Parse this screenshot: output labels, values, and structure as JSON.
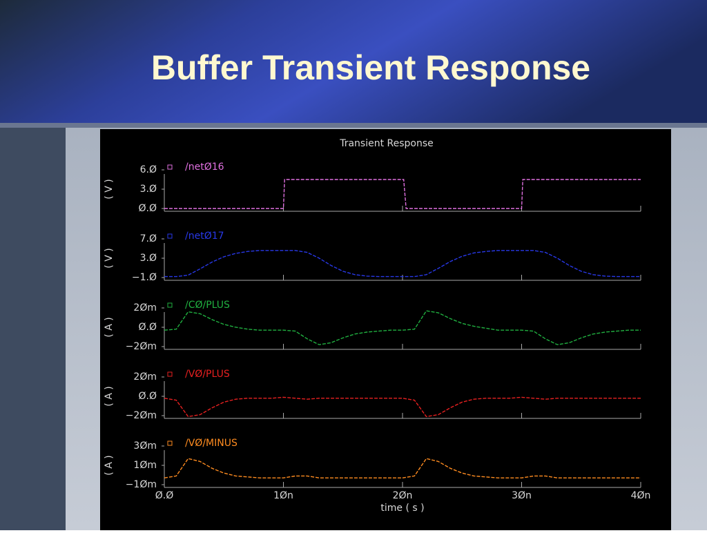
{
  "title": "Buffer Transient Response",
  "chart_data": {
    "type": "line",
    "title": "Transient Response",
    "xlabel": "time ( s )",
    "xlim": [
      0,
      4e-08
    ],
    "xticks": [
      {
        "value": 0,
        "label": "Ø.Ø"
      },
      {
        "value": 1e-08,
        "label": "1Øn"
      },
      {
        "value": 2e-08,
        "label": "2Øn"
      },
      {
        "value": 3e-08,
        "label": "3Øn"
      },
      {
        "value": 4e-08,
        "label": "4Øn"
      }
    ],
    "panels": [
      {
        "ylabel": "( V )",
        "ylim": [
          0,
          6
        ],
        "yticks": [
          {
            "value": 0,
            "label": "Ø.Ø"
          },
          {
            "value": 3,
            "label": "3.Ø"
          },
          {
            "value": 6,
            "label": "6.Ø"
          }
        ],
        "x": [
          0,
          1e-08,
          1.01e-08,
          2.01e-08,
          2.03e-08,
          3e-08,
          3.01e-08,
          4e-08
        ],
        "series": [
          {
            "name": "/netØ16",
            "color": "#e070e0",
            "values": [
              0,
              0,
              4.5,
              4.5,
              0,
              0,
              4.5,
              4.5
            ]
          }
        ]
      },
      {
        "ylabel": "( V )",
        "ylim": [
          -1,
          7
        ],
        "yticks": [
          {
            "value": -1,
            "label": "−1.Ø"
          },
          {
            "value": 3,
            "label": "3.Ø"
          },
          {
            "value": 7,
            "label": "7.Ø"
          }
        ],
        "x": [
          0,
          1e-09,
          2e-09,
          3e-09,
          4e-09,
          5e-09,
          6e-09,
          7e-09,
          8e-09,
          9e-09,
          1e-08,
          1.1e-08,
          1.2e-08,
          1.3e-08,
          1.4e-08,
          1.5e-08,
          1.6e-08,
          1.7e-08,
          1.8e-08,
          1.9e-08,
          2e-08,
          2.1e-08,
          2.2e-08,
          2.3e-08,
          2.4e-08,
          2.5e-08,
          2.6e-08,
          2.7e-08,
          2.8e-08,
          2.9e-08,
          3e-08,
          3.1e-08,
          3.2e-08,
          3.3e-08,
          3.4e-08,
          3.5e-08,
          3.6e-08,
          3.7e-08,
          3.8e-08,
          3.9e-08,
          4e-08
        ],
        "series": [
          {
            "name": "/netØ17",
            "color": "#2838e8",
            "values": [
              -0.8,
              -0.8,
              -0.5,
              0.8,
              2.2,
              3.3,
              4.0,
              4.4,
              4.6,
              4.6,
              4.6,
              4.6,
              4.2,
              3.0,
              1.5,
              0.3,
              -0.4,
              -0.7,
              -0.8,
              -0.8,
              -0.8,
              -0.8,
              -0.4,
              0.9,
              2.3,
              3.4,
              4.1,
              4.4,
              4.6,
              4.6,
              4.6,
              4.6,
              4.2,
              3.0,
              1.5,
              0.3,
              -0.4,
              -0.7,
              -0.8,
              -0.8,
              -0.8
            ]
          }
        ]
      },
      {
        "ylabel": "( A )",
        "ylim": [
          -0.02,
          0.02
        ],
        "yticks": [
          {
            "value": -0.02,
            "label": "−2Øm"
          },
          {
            "value": 0,
            "label": "Ø.Ø"
          },
          {
            "value": 0.02,
            "label": "2Øm"
          }
        ],
        "x": [
          0,
          1e-09,
          2e-09,
          3e-09,
          4e-09,
          5e-09,
          6e-09,
          7e-09,
          8e-09,
          9e-09,
          1e-08,
          1.1e-08,
          1.2e-08,
          1.3e-08,
          1.4e-08,
          1.5e-08,
          1.6e-08,
          1.7e-08,
          1.8e-08,
          1.9e-08,
          2e-08,
          2.1e-08,
          2.2e-08,
          2.3e-08,
          2.4e-08,
          2.5e-08,
          2.6e-08,
          2.7e-08,
          2.8e-08,
          2.9e-08,
          3e-08,
          3.1e-08,
          3.2e-08,
          3.3e-08,
          3.4e-08,
          3.5e-08,
          3.6e-08,
          3.7e-08,
          3.8e-08,
          3.9e-08,
          4e-08
        ],
        "series": [
          {
            "name": "/CØ/PLUS",
            "color": "#20b040",
            "values": [
              -0.003,
              -0.002,
              0.016,
              0.014,
              0.008,
              0.003,
              0.0,
              -0.002,
              -0.003,
              -0.003,
              -0.003,
              -0.004,
              -0.012,
              -0.018,
              -0.016,
              -0.011,
              -0.007,
              -0.005,
              -0.004,
              -0.003,
              -0.003,
              -0.002,
              0.017,
              0.015,
              0.009,
              0.004,
              0.001,
              -0.001,
              -0.003,
              -0.003,
              -0.003,
              -0.004,
              -0.012,
              -0.018,
              -0.016,
              -0.011,
              -0.007,
              -0.005,
              -0.004,
              -0.003,
              -0.003
            ]
          }
        ]
      },
      {
        "ylabel": "( A )",
        "ylim": [
          -0.02,
          0.02
        ],
        "yticks": [
          {
            "value": -0.02,
            "label": "−2Øm"
          },
          {
            "value": 0,
            "label": "Ø.Ø"
          },
          {
            "value": 0.02,
            "label": "2Øm"
          }
        ],
        "x": [
          0,
          1e-09,
          2e-09,
          3e-09,
          4e-09,
          5e-09,
          6e-09,
          7e-09,
          8e-09,
          9e-09,
          1e-08,
          1.1e-08,
          1.2e-08,
          1.3e-08,
          1.4e-08,
          1.5e-08,
          1.6e-08,
          1.7e-08,
          1.8e-08,
          1.9e-08,
          2e-08,
          2.1e-08,
          2.2e-08,
          2.3e-08,
          2.4e-08,
          2.5e-08,
          2.6e-08,
          2.7e-08,
          2.8e-08,
          2.9e-08,
          3e-08,
          3.1e-08,
          3.2e-08,
          3.3e-08,
          3.4e-08,
          3.5e-08,
          3.6e-08,
          3.7e-08,
          3.8e-08,
          3.9e-08,
          4e-08
        ],
        "series": [
          {
            "name": "/VØ/PLUS",
            "color": "#e82020",
            "values": [
              -0.002,
              -0.004,
              -0.021,
              -0.019,
              -0.012,
              -0.006,
              -0.003,
              -0.002,
              -0.002,
              -0.002,
              -0.001,
              -0.002,
              -0.003,
              -0.002,
              -0.002,
              -0.002,
              -0.002,
              -0.002,
              -0.002,
              -0.002,
              -0.002,
              -0.004,
              -0.021,
              -0.019,
              -0.012,
              -0.006,
              -0.003,
              -0.002,
              -0.002,
              -0.002,
              -0.001,
              -0.002,
              -0.003,
              -0.002,
              -0.002,
              -0.002,
              -0.002,
              -0.002,
              -0.002,
              -0.002,
              -0.002
            ]
          }
        ]
      },
      {
        "ylabel": "( A )",
        "ylim": [
          -0.01,
          0.03
        ],
        "yticks": [
          {
            "value": -0.01,
            "label": "−1Øm"
          },
          {
            "value": 0.01,
            "label": "1Øm"
          },
          {
            "value": 0.03,
            "label": "3Øm"
          }
        ],
        "x": [
          0,
          1e-09,
          2e-09,
          3e-09,
          4e-09,
          5e-09,
          6e-09,
          7e-09,
          8e-09,
          9e-09,
          1e-08,
          1.1e-08,
          1.2e-08,
          1.3e-08,
          1.4e-08,
          1.5e-08,
          1.6e-08,
          1.7e-08,
          1.8e-08,
          1.9e-08,
          2e-08,
          2.1e-08,
          2.2e-08,
          2.3e-08,
          2.4e-08,
          2.5e-08,
          2.6e-08,
          2.7e-08,
          2.8e-08,
          2.9e-08,
          3e-08,
          3.1e-08,
          3.2e-08,
          3.3e-08,
          3.4e-08,
          3.5e-08,
          3.6e-08,
          3.7e-08,
          3.8e-08,
          3.9e-08,
          4e-08
        ],
        "series": [
          {
            "name": "/VØ/MINUS",
            "color": "#ff8c20",
            "values": [
              -0.003,
              -0.001,
              0.017,
              0.014,
              0.007,
              0.002,
              -0.001,
              -0.002,
              -0.003,
              -0.003,
              -0.003,
              -0.001,
              -0.001,
              -0.003,
              -0.003,
              -0.003,
              -0.003,
              -0.003,
              -0.003,
              -0.003,
              -0.003,
              -0.001,
              0.017,
              0.014,
              0.007,
              0.002,
              -0.001,
              -0.002,
              -0.003,
              -0.003,
              -0.003,
              -0.001,
              -0.001,
              -0.003,
              -0.003,
              -0.003,
              -0.003,
              -0.003,
              -0.003,
              -0.003,
              -0.003
            ]
          }
        ]
      }
    ]
  }
}
